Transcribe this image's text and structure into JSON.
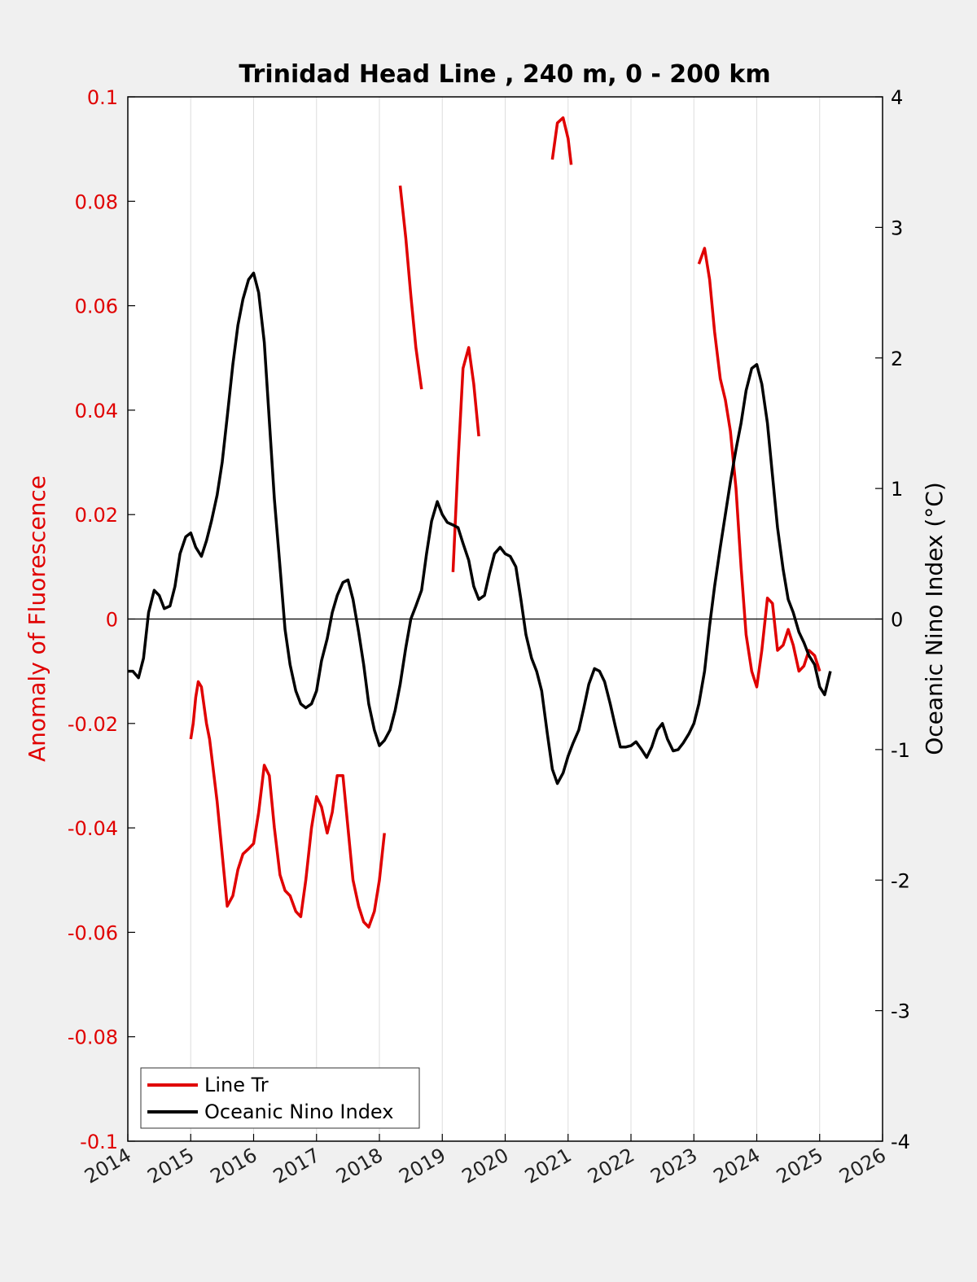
{
  "chart_data": {
    "type": "line",
    "title": "Trinidad Head Line , 240 m, 0 - 200 km",
    "xlabel": "",
    "ylabel_left": "Anomaly of Fluorescence",
    "ylabel_right": "Oceanic Nino Index (°C)",
    "xlim": [
      2014,
      2026
    ],
    "ylim_left": [
      -0.1,
      0.1
    ],
    "ylim_right": [
      -4,
      4
    ],
    "x_ticks": [
      "2014",
      "2015",
      "2016",
      "2017",
      "2018",
      "2019",
      "2020",
      "2021",
      "2022",
      "2023",
      "2024",
      "2025",
      "2026"
    ],
    "y_ticks_left": [
      "0.1",
      "0.08",
      "0.06",
      "0.04",
      "0.02",
      "0",
      "-0.02",
      "-0.04",
      "-0.06",
      "-0.08",
      "-0.1"
    ],
    "y_ticks_right": [
      "4",
      "3",
      "2",
      "1",
      "0",
      "-1",
      "-2",
      "-3",
      "-4"
    ],
    "grid": "vertical",
    "legend_position": "bottom-left",
    "colors": {
      "left_axis": "#e00000",
      "right_axis": "#000000",
      "zero_line": "#000000",
      "grid": "#dddddd"
    },
    "series": [
      {
        "name": "Line Tr",
        "axis": "left",
        "color": "#e00000",
        "segments": [
          [
            [
              2015.0,
              -0.023
            ],
            [
              2015.04,
              -0.02
            ],
            [
              2015.08,
              -0.015
            ],
            [
              2015.12,
              -0.012
            ],
            [
              2015.17,
              -0.013
            ],
            [
              2015.25,
              -0.02
            ],
            [
              2015.3,
              -0.023
            ],
            [
              2015.35,
              -0.028
            ],
            [
              2015.42,
              -0.035
            ],
            [
              2015.5,
              -0.045
            ],
            [
              2015.58,
              -0.055
            ],
            [
              2015.67,
              -0.053
            ],
            [
              2015.75,
              -0.048
            ],
            [
              2015.83,
              -0.045
            ],
            [
              2015.92,
              -0.044
            ],
            [
              2016.0,
              -0.043
            ],
            [
              2016.08,
              -0.037
            ],
            [
              2016.17,
              -0.028
            ],
            [
              2016.25,
              -0.03
            ],
            [
              2016.33,
              -0.04
            ],
            [
              2016.42,
              -0.049
            ],
            [
              2016.5,
              -0.052
            ],
            [
              2016.58,
              -0.053
            ],
            [
              2016.67,
              -0.056
            ],
            [
              2016.75,
              -0.057
            ],
            [
              2016.83,
              -0.05
            ],
            [
              2016.92,
              -0.04
            ],
            [
              2017.0,
              -0.034
            ],
            [
              2017.08,
              -0.036
            ],
            [
              2017.17,
              -0.041
            ],
            [
              2017.25,
              -0.037
            ],
            [
              2017.33,
              -0.03
            ],
            [
              2017.42,
              -0.03
            ],
            [
              2017.5,
              -0.04
            ],
            [
              2017.58,
              -0.05
            ],
            [
              2017.67,
              -0.055
            ],
            [
              2017.75,
              -0.058
            ],
            [
              2017.83,
              -0.059
            ],
            [
              2017.92,
              -0.056
            ],
            [
              2018.0,
              -0.05
            ],
            [
              2018.08,
              -0.041
            ]
          ],
          [
            [
              2018.33,
              0.083
            ],
            [
              2018.42,
              0.073
            ],
            [
              2018.5,
              0.062
            ],
            [
              2018.58,
              0.052
            ],
            [
              2018.67,
              0.044
            ]
          ],
          [
            [
              2019.17,
              0.009
            ],
            [
              2019.25,
              0.03
            ],
            [
              2019.33,
              0.048
            ],
            [
              2019.42,
              0.052
            ],
            [
              2019.5,
              0.045
            ],
            [
              2019.58,
              0.035
            ]
          ],
          [
            [
              2020.75,
              0.088
            ],
            [
              2020.83,
              0.095
            ],
            [
              2020.92,
              0.096
            ],
            [
              2021.0,
              0.092
            ],
            [
              2021.05,
              0.087
            ]
          ],
          [
            [
              2023.08,
              0.068
            ],
            [
              2023.17,
              0.071
            ],
            [
              2023.25,
              0.065
            ],
            [
              2023.33,
              0.055
            ],
            [
              2023.42,
              0.046
            ],
            [
              2023.5,
              0.042
            ],
            [
              2023.58,
              0.036
            ],
            [
              2023.67,
              0.025
            ],
            [
              2023.75,
              0.01
            ],
            [
              2023.83,
              -0.003
            ],
            [
              2023.92,
              -0.01
            ],
            [
              2024.0,
              -0.013
            ],
            [
              2024.08,
              -0.006
            ],
            [
              2024.17,
              0.004
            ],
            [
              2024.25,
              0.003
            ],
            [
              2024.33,
              -0.006
            ],
            [
              2024.42,
              -0.005
            ],
            [
              2024.5,
              -0.002
            ],
            [
              2024.58,
              -0.005
            ],
            [
              2024.67,
              -0.01
            ],
            [
              2024.75,
              -0.009
            ],
            [
              2024.83,
              -0.006
            ],
            [
              2024.92,
              -0.007
            ],
            [
              2025.0,
              -0.01
            ]
          ]
        ]
      },
      {
        "name": "Oceanic Nino Index",
        "axis": "right",
        "color": "#000000",
        "segments": [
          [
            [
              2014.0,
              -0.4
            ],
            [
              2014.08,
              -0.4
            ],
            [
              2014.17,
              -0.45
            ],
            [
              2014.25,
              -0.3
            ],
            [
              2014.33,
              0.05
            ],
            [
              2014.42,
              0.22
            ],
            [
              2014.5,
              0.18
            ],
            [
              2014.58,
              0.08
            ],
            [
              2014.67,
              0.1
            ],
            [
              2014.75,
              0.25
            ],
            [
              2014.83,
              0.5
            ],
            [
              2014.92,
              0.63
            ],
            [
              2015.0,
              0.66
            ],
            [
              2015.08,
              0.55
            ],
            [
              2015.17,
              0.48
            ],
            [
              2015.25,
              0.6
            ],
            [
              2015.33,
              0.75
            ],
            [
              2015.42,
              0.95
            ],
            [
              2015.5,
              1.2
            ],
            [
              2015.58,
              1.55
            ],
            [
              2015.67,
              1.95
            ],
            [
              2015.75,
              2.25
            ],
            [
              2015.83,
              2.45
            ],
            [
              2015.92,
              2.6
            ],
            [
              2016.0,
              2.65
            ],
            [
              2016.08,
              2.5
            ],
            [
              2016.17,
              2.12
            ],
            [
              2016.25,
              1.52
            ],
            [
              2016.33,
              0.92
            ],
            [
              2016.42,
              0.4
            ],
            [
              2016.5,
              -0.08
            ],
            [
              2016.58,
              -0.35
            ],
            [
              2016.67,
              -0.55
            ],
            [
              2016.75,
              -0.65
            ],
            [
              2016.83,
              -0.68
            ],
            [
              2016.92,
              -0.65
            ],
            [
              2017.0,
              -0.55
            ],
            [
              2017.08,
              -0.32
            ],
            [
              2017.17,
              -0.15
            ],
            [
              2017.25,
              0.05
            ],
            [
              2017.33,
              0.18
            ],
            [
              2017.42,
              0.28
            ],
            [
              2017.5,
              0.3
            ],
            [
              2017.58,
              0.15
            ],
            [
              2017.67,
              -0.1
            ],
            [
              2017.75,
              -0.35
            ],
            [
              2017.83,
              -0.65
            ],
            [
              2017.92,
              -0.85
            ],
            [
              2018.0,
              -0.97
            ],
            [
              2018.08,
              -0.93
            ],
            [
              2018.17,
              -0.85
            ],
            [
              2018.25,
              -0.7
            ],
            [
              2018.33,
              -0.5
            ],
            [
              2018.42,
              -0.22
            ],
            [
              2018.5,
              0.0
            ],
            [
              2018.58,
              0.1
            ],
            [
              2018.67,
              0.22
            ],
            [
              2018.75,
              0.5
            ],
            [
              2018.83,
              0.75
            ],
            [
              2018.92,
              0.9
            ],
            [
              2019.0,
              0.8
            ],
            [
              2019.08,
              0.74
            ],
            [
              2019.17,
              0.72
            ],
            [
              2019.25,
              0.7
            ],
            [
              2019.33,
              0.58
            ],
            [
              2019.42,
              0.45
            ],
            [
              2019.5,
              0.25
            ],
            [
              2019.58,
              0.15
            ],
            [
              2019.67,
              0.18
            ],
            [
              2019.75,
              0.35
            ],
            [
              2019.83,
              0.5
            ],
            [
              2019.92,
              0.55
            ],
            [
              2020.0,
              0.5
            ],
            [
              2020.08,
              0.48
            ],
            [
              2020.17,
              0.4
            ],
            [
              2020.25,
              0.15
            ],
            [
              2020.33,
              -0.12
            ],
            [
              2020.42,
              -0.3
            ],
            [
              2020.5,
              -0.4
            ],
            [
              2020.58,
              -0.55
            ],
            [
              2020.67,
              -0.88
            ],
            [
              2020.75,
              -1.15
            ],
            [
              2020.83,
              -1.26
            ],
            [
              2020.92,
              -1.18
            ],
            [
              2021.0,
              -1.05
            ],
            [
              2021.08,
              -0.95
            ],
            [
              2021.17,
              -0.85
            ],
            [
              2021.25,
              -0.68
            ],
            [
              2021.33,
              -0.5
            ],
            [
              2021.42,
              -0.38
            ],
            [
              2021.5,
              -0.4
            ],
            [
              2021.58,
              -0.48
            ],
            [
              2021.67,
              -0.65
            ],
            [
              2021.75,
              -0.82
            ],
            [
              2021.83,
              -0.98
            ],
            [
              2021.92,
              -0.98
            ],
            [
              2022.0,
              -0.97
            ],
            [
              2022.08,
              -0.94
            ],
            [
              2022.17,
              -1.0
            ],
            [
              2022.25,
              -1.06
            ],
            [
              2022.33,
              -0.98
            ],
            [
              2022.42,
              -0.85
            ],
            [
              2022.5,
              -0.8
            ],
            [
              2022.58,
              -0.92
            ],
            [
              2022.67,
              -1.01
            ],
            [
              2022.75,
              -1.0
            ],
            [
              2022.83,
              -0.95
            ],
            [
              2022.92,
              -0.88
            ],
            [
              2023.0,
              -0.8
            ],
            [
              2023.08,
              -0.65
            ],
            [
              2023.17,
              -0.4
            ],
            [
              2023.25,
              -0.05
            ],
            [
              2023.33,
              0.25
            ],
            [
              2023.42,
              0.55
            ],
            [
              2023.5,
              0.8
            ],
            [
              2023.58,
              1.05
            ],
            [
              2023.67,
              1.3
            ],
            [
              2023.75,
              1.5
            ],
            [
              2023.83,
              1.75
            ],
            [
              2023.92,
              1.92
            ],
            [
              2024.0,
              1.95
            ],
            [
              2024.08,
              1.8
            ],
            [
              2024.17,
              1.5
            ],
            [
              2024.25,
              1.1
            ],
            [
              2024.33,
              0.7
            ],
            [
              2024.42,
              0.38
            ],
            [
              2024.5,
              0.15
            ],
            [
              2024.58,
              0.05
            ],
            [
              2024.67,
              -0.1
            ],
            [
              2024.75,
              -0.18
            ],
            [
              2024.83,
              -0.28
            ],
            [
              2024.92,
              -0.35
            ],
            [
              2025.0,
              -0.52
            ],
            [
              2025.08,
              -0.58
            ],
            [
              2025.17,
              -0.4
            ]
          ]
        ]
      }
    ]
  }
}
